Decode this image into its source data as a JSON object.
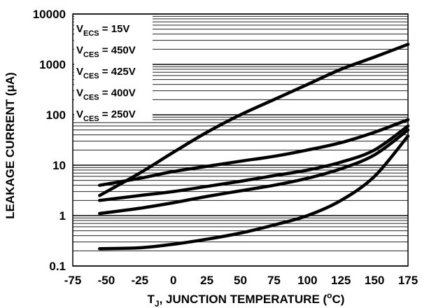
{
  "chart_data": {
    "type": "line",
    "xlabel": {
      "prefix": "T",
      "sub": "J",
      "rest": ", JUNCTION TEMPERATURE (",
      "sup": "o",
      "end": "C)"
    },
    "ylabel": "LEAKAGE CURRENT (μA)",
    "x_scale": "linear",
    "y_scale": "log",
    "xlim": [
      -75,
      175
    ],
    "ylim": [
      0.1,
      10000
    ],
    "x_ticks": [
      "-75",
      "-50",
      "-25",
      "0",
      "25",
      "50",
      "75",
      "100",
      "125",
      "150",
      "175"
    ],
    "y_ticks": [
      "0.1",
      "1",
      "10",
      "100",
      "1000",
      "10000"
    ],
    "grid": "horizontal log minor lines",
    "legend": [
      {
        "v": "V",
        "sub": "ECS",
        "val": " = 15V"
      },
      {
        "v": "V",
        "sub": "CES",
        "val": " = 450V"
      },
      {
        "v": "V",
        "sub": "CES",
        "val": " = 425V"
      },
      {
        "v": "V",
        "sub": "CES",
        "val": " = 400V"
      },
      {
        "v": "V",
        "sub": "CES",
        "val": " = 250V"
      }
    ],
    "series": [
      {
        "x": [
          -55,
          -25,
          0,
          25,
          50,
          75,
          100,
          125,
          150,
          175
        ],
        "y": [
          2.5,
          7,
          18,
          45,
          100,
          200,
          400,
          800,
          1400,
          2500
        ]
      },
      {
        "x": [
          -55,
          -25,
          0,
          25,
          50,
          75,
          100,
          125,
          150,
          175
        ],
        "y": [
          4,
          5.5,
          7.5,
          9.5,
          12,
          15,
          20,
          28,
          45,
          80
        ]
      },
      {
        "x": [
          -55,
          -25,
          0,
          25,
          50,
          75,
          100,
          125,
          150,
          175
        ],
        "y": [
          2,
          2.5,
          3,
          3.8,
          4.8,
          6.2,
          8,
          11.5,
          20,
          60
        ]
      },
      {
        "x": [
          -55,
          -25,
          0,
          25,
          50,
          75,
          100,
          125,
          150,
          175
        ],
        "y": [
          1.1,
          1.4,
          1.8,
          2.4,
          3.1,
          4,
          5.5,
          8.5,
          16,
          50
        ]
      },
      {
        "x": [
          -55,
          -25,
          0,
          25,
          50,
          75,
          100,
          125,
          150,
          175
        ],
        "y": [
          0.22,
          0.23,
          0.27,
          0.34,
          0.45,
          0.65,
          1.0,
          2.0,
          6,
          38
        ]
      }
    ]
  }
}
